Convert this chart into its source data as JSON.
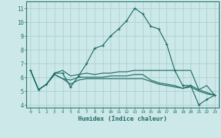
{
  "xlabel": "Humidex (Indice chaleur)",
  "background_color": "#cce8e8",
  "grid_color": "#aad0d0",
  "line_color": "#1e6b64",
  "xlim": [
    -0.5,
    23.5
  ],
  "ylim": [
    3.8,
    11.5
  ],
  "xticks": [
    0,
    1,
    2,
    3,
    4,
    5,
    6,
    7,
    8,
    9,
    10,
    11,
    12,
    13,
    14,
    15,
    16,
    17,
    18,
    19,
    20,
    21,
    22,
    23
  ],
  "yticks": [
    4,
    5,
    6,
    7,
    8,
    9,
    10,
    11
  ],
  "lines": [
    {
      "x": [
        0,
        1,
        2,
        3,
        4,
        5,
        6,
        7,
        8,
        9,
        10,
        11,
        12,
        13,
        14,
        15,
        16,
        17,
        18,
        19,
        20,
        21,
        22,
        23
      ],
      "y": [
        6.5,
        5.1,
        5.5,
        6.3,
        6.3,
        5.3,
        6.1,
        7.0,
        8.1,
        8.3,
        9.0,
        9.5,
        10.1,
        11.0,
        10.6,
        9.7,
        9.5,
        8.4,
        6.5,
        5.4,
        5.4,
        4.0,
        4.4,
        4.7
      ],
      "marker": true
    },
    {
      "x": [
        0,
        1,
        2,
        3,
        4,
        5,
        6,
        7,
        8,
        9,
        10,
        11,
        12,
        13,
        14,
        15,
        16,
        17,
        18,
        19,
        20,
        21,
        22,
        23
      ],
      "y": [
        6.5,
        5.1,
        5.5,
        6.2,
        5.9,
        5.8,
        6.0,
        6.0,
        6.0,
        6.0,
        6.1,
        6.1,
        6.1,
        6.2,
        6.2,
        5.8,
        5.6,
        5.5,
        5.4,
        5.2,
        5.4,
        5.1,
        4.9,
        4.7
      ],
      "marker": false
    },
    {
      "x": [
        0,
        1,
        2,
        3,
        4,
        5,
        6,
        7,
        8,
        9,
        10,
        11,
        12,
        13,
        14,
        15,
        16,
        17,
        18,
        19,
        20,
        21,
        22,
        23
      ],
      "y": [
        6.5,
        5.1,
        5.5,
        6.2,
        5.9,
        5.5,
        5.8,
        5.9,
        5.9,
        5.9,
        5.9,
        5.9,
        5.9,
        5.9,
        5.9,
        5.7,
        5.5,
        5.4,
        5.3,
        5.2,
        5.3,
        5.0,
        4.8,
        4.7
      ],
      "marker": false
    },
    {
      "x": [
        0,
        1,
        2,
        3,
        4,
        5,
        6,
        7,
        8,
        9,
        10,
        11,
        12,
        13,
        14,
        15,
        16,
        17,
        18,
        19,
        20,
        21,
        22,
        23
      ],
      "y": [
        6.5,
        5.1,
        5.5,
        6.3,
        6.5,
        6.1,
        6.2,
        6.3,
        6.2,
        6.3,
        6.3,
        6.4,
        6.4,
        6.5,
        6.5,
        6.5,
        6.5,
        6.5,
        6.5,
        6.5,
        6.5,
        5.1,
        5.4,
        4.7
      ],
      "marker": false
    }
  ]
}
